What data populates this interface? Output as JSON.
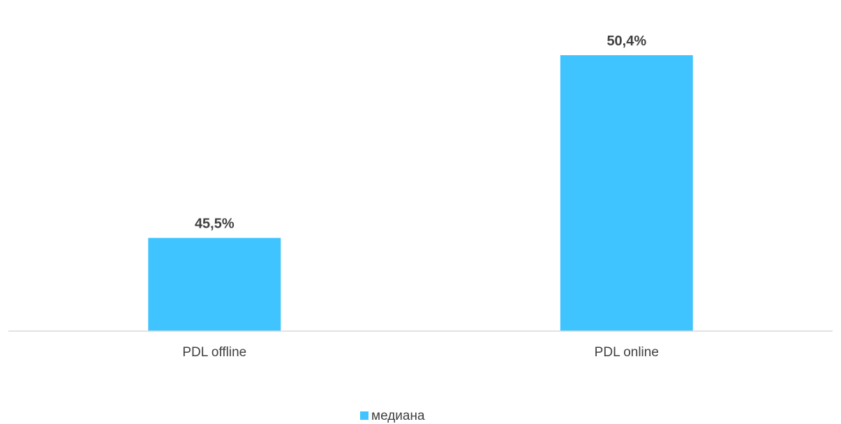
{
  "chart_data": {
    "type": "bar",
    "categories": [
      "PDL offline",
      "PDL online"
    ],
    "series": [
      {
        "name": "медиана",
        "values": [
          45.5,
          50.4
        ],
        "labels": [
          "45,5%",
          "50,4%"
        ],
        "color": "#40C4FF"
      }
    ],
    "title": "",
    "xlabel": "",
    "ylabel": "",
    "ylim": [
      43.0,
      51.0
    ],
    "grid": false,
    "legend": "bottom-center"
  }
}
